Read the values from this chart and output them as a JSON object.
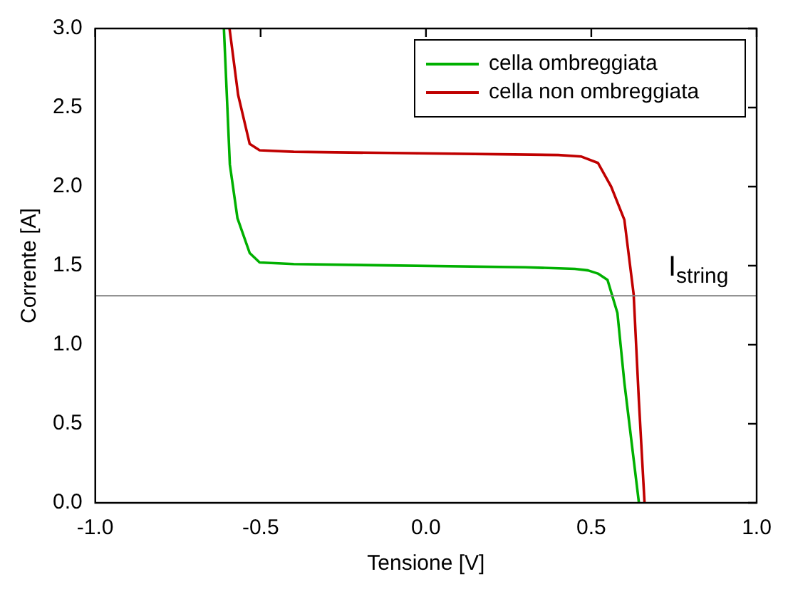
{
  "chart_data": {
    "type": "line",
    "xlabel": "Tensione [V]",
    "ylabel": "Corrente [A]",
    "xlim": [
      -1,
      1
    ],
    "xticks": [
      {
        "value": -1,
        "label": "-1.0"
      },
      -0.5,
      {
        "value": 0,
        "label": "0.0"
      },
      0.5,
      {
        "value": 1,
        "label": "1.0"
      }
    ],
    "ylim": [
      0,
      3
    ],
    "yticks": [
      {
        "value": 0,
        "label": "0.0"
      },
      0.5,
      {
        "value": 1,
        "label": "1.0"
      },
      1.5,
      {
        "value": 2,
        "label": "2.0"
      },
      2.5,
      {
        "value": 3,
        "label": "3.0"
      }
    ],
    "grid": false,
    "legend": "top right",
    "marker": "none",
    "line_style": "solid",
    "ref_lines": [
      {
        "axis": "y",
        "value": 1.31,
        "label": "I$_{string}$",
        "color": "#808080"
      }
    ],
    "series": [
      {
        "name": "cella ombreggiata",
        "color": "#00b000",
        "x": [
          -0.611,
          -0.593,
          -0.57,
          -0.533,
          -0.503,
          -0.4,
          0.3,
          0.45,
          0.49,
          0.52,
          0.549,
          0.579,
          0.6,
          0.644
        ],
        "values": [
          3,
          2.14,
          1.8,
          1.58,
          1.52,
          1.51,
          1.49,
          1.48,
          1.47,
          1.45,
          1.41,
          1.2,
          0.76,
          0
        ]
      },
      {
        "name": "cella non ombreggiata",
        "color": "#c00000",
        "x": [
          -0.594,
          -0.568,
          -0.533,
          -0.503,
          -0.4,
          0.4,
          0.47,
          0.52,
          0.56,
          0.6,
          0.628,
          0.644,
          0.661
        ],
        "values": [
          3,
          2.58,
          2.27,
          2.23,
          2.22,
          2.2,
          2.19,
          2.15,
          2.0,
          1.79,
          1.32,
          0.64,
          0
        ]
      }
    ]
  }
}
